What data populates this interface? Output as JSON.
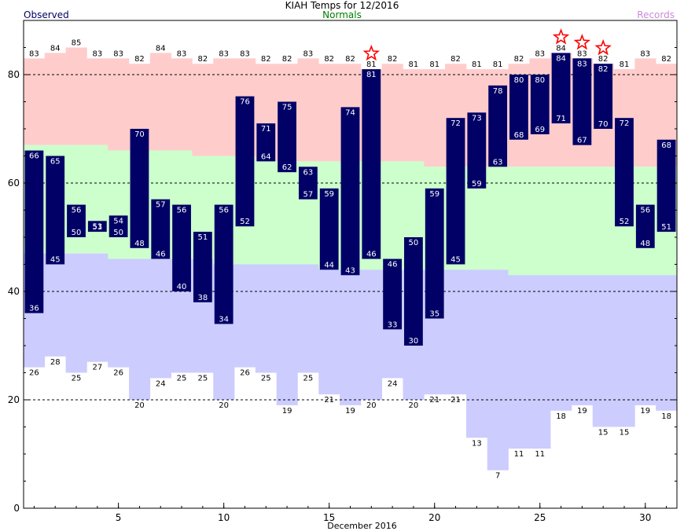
{
  "header": {
    "title": "KIAH Temps for 12/2016",
    "observed_label": "Observed",
    "normals_label": "Normals",
    "records_label": "Records"
  },
  "colors": {
    "observed_bar": "#000066",
    "record_high_fill": "#ffcccc",
    "normal_fill": "#ccffcc",
    "record_low_fill": "#ccccff",
    "record_star": "#ff0000",
    "normals_text": "#008000",
    "records_text": "#cc88dd"
  },
  "chart_data": {
    "type": "bar",
    "title": "KIAH Temps for 12/2016",
    "xlabel": "December 2016",
    "ylabel": "",
    "xlim": [
      0.5,
      31.5
    ],
    "ylim": [
      0,
      90
    ],
    "x_ticks": [
      5,
      10,
      15,
      20,
      25,
      30
    ],
    "y_ticks": [
      0,
      20,
      40,
      60,
      80
    ],
    "gridlines_y": [
      20,
      40,
      60,
      80
    ],
    "days": [
      1,
      2,
      3,
      4,
      5,
      6,
      7,
      8,
      9,
      10,
      11,
      12,
      13,
      14,
      15,
      16,
      17,
      18,
      19,
      20,
      21,
      22,
      23,
      24,
      25,
      26,
      27,
      28,
      29,
      30,
      31
    ],
    "observed_high": [
      66,
      65,
      56,
      53,
      54,
      70,
      57,
      56,
      51,
      56,
      76,
      71,
      75,
      63,
      59,
      74,
      81,
      46,
      50,
      59,
      72,
      73,
      78,
      80,
      80,
      84,
      83,
      82,
      72,
      56,
      68
    ],
    "observed_low": [
      36,
      45,
      50,
      51,
      50,
      48,
      46,
      40,
      38,
      34,
      52,
      64,
      62,
      57,
      44,
      43,
      46,
      33,
      30,
      35,
      45,
      59,
      63,
      68,
      69,
      71,
      67,
      70,
      52,
      48,
      51
    ],
    "record_high": [
      83,
      84,
      85,
      83,
      83,
      82,
      84,
      83,
      82,
      83,
      83,
      82,
      82,
      83,
      82,
      82,
      81,
      82,
      81,
      81,
      82,
      81,
      81,
      82,
      83,
      84,
      83,
      82,
      81,
      83,
      82
    ],
    "record_low": [
      26,
      28,
      25,
      27,
      26,
      20,
      24,
      25,
      25,
      20,
      26,
      25,
      19,
      25,
      21,
      19,
      20,
      24,
      20,
      21,
      21,
      13,
      7,
      11,
      11,
      18,
      19,
      15,
      15,
      19,
      18
    ],
    "normal_high": [
      67,
      67,
      67,
      67,
      66,
      66,
      66,
      66,
      65,
      65,
      65,
      64,
      64,
      64,
      64,
      64,
      64,
      64,
      64,
      63,
      63,
      63,
      63,
      63,
      63,
      63,
      63,
      63,
      63,
      63,
      63
    ],
    "normal_low": [
      47,
      47,
      47,
      47,
      46,
      46,
      46,
      46,
      46,
      45,
      45,
      45,
      45,
      45,
      44,
      44,
      44,
      44,
      44,
      44,
      44,
      44,
      44,
      43,
      43,
      43,
      43,
      43,
      43,
      43,
      43
    ],
    "record_high_set_days": [
      17,
      26,
      27,
      28
    ]
  }
}
